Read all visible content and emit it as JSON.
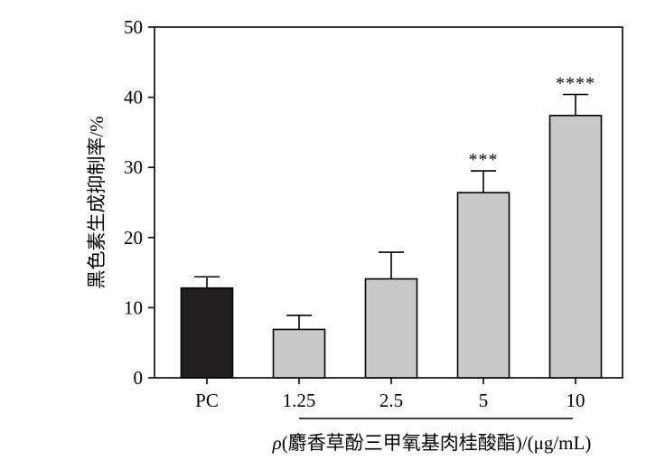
{
  "chart_data": {
    "type": "bar",
    "categories": [
      "PC",
      "1.25",
      "2.5",
      "5",
      "10"
    ],
    "values": [
      12.8,
      6.9,
      14.1,
      26.4,
      37.4
    ],
    "errors": [
      1.6,
      2.0,
      3.8,
      3.1,
      3.0
    ],
    "significance": [
      "",
      "",
      "",
      "***",
      "****"
    ],
    "bar_colors": [
      "#231f20",
      "#c9c9c9",
      "#c9c9c9",
      "#c9c9c9",
      "#c9c9c9"
    ],
    "ylim": [
      0,
      50
    ],
    "yticks": [
      0,
      10,
      20,
      30,
      40,
      50
    ],
    "ylabel": "黑色素生成抑制率/%",
    "xlabel_prefix": "ρ",
    "xlabel": "(麝香草酚三甲氧基肉桂酸酯)/(μg/mL)",
    "grid": false,
    "legend": "none"
  }
}
